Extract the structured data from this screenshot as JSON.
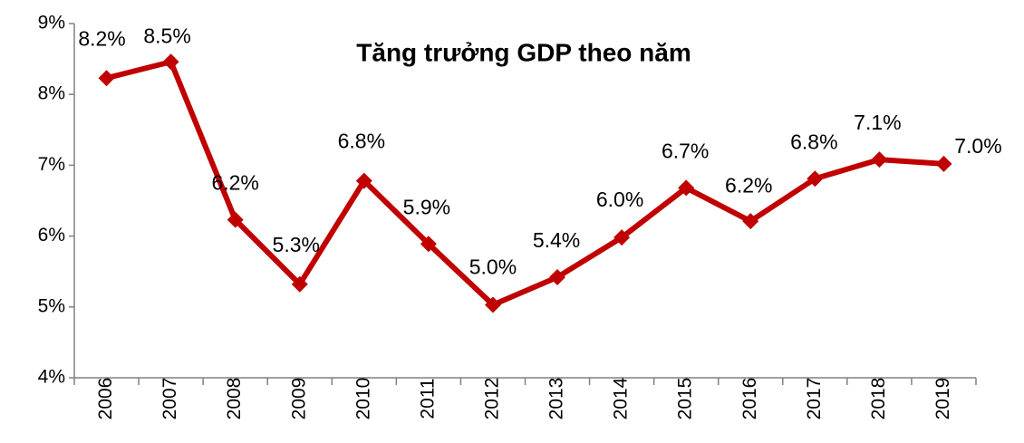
{
  "chart_data": {
    "type": "line",
    "title": "Tăng trưởng GDP theo năm",
    "categories": [
      "2006",
      "2007",
      "2008",
      "2009",
      "2010",
      "2011",
      "2012",
      "2013",
      "2014",
      "2015",
      "2016",
      "2017",
      "2018",
      "2019"
    ],
    "series": [
      {
        "color": "#c00000",
        "values": [
          8.23,
          8.46,
          6.23,
          5.32,
          6.78,
          5.89,
          5.03,
          5.42,
          5.98,
          6.68,
          6.21,
          6.81,
          7.08,
          7.02
        ],
        "value_labels": [
          "8.2%",
          "8.5%",
          "6.2%",
          "5.3%",
          "6.8%",
          "5.9%",
          "5.0%",
          "5.4%",
          "6.0%",
          "6.7%",
          "6.2%",
          "6.8%",
          "7.1%",
          "7.0%"
        ]
      }
    ],
    "ylim": [
      4,
      9
    ],
    "yticks": [
      {
        "value": 4,
        "label": "4%"
      },
      {
        "value": 5,
        "label": "5%"
      },
      {
        "value": 6,
        "label": "6%"
      },
      {
        "value": 7,
        "label": "7%"
      },
      {
        "value": 8,
        "label": "8%"
      },
      {
        "value": 9,
        "label": "9%"
      }
    ],
    "grid": false
  }
}
